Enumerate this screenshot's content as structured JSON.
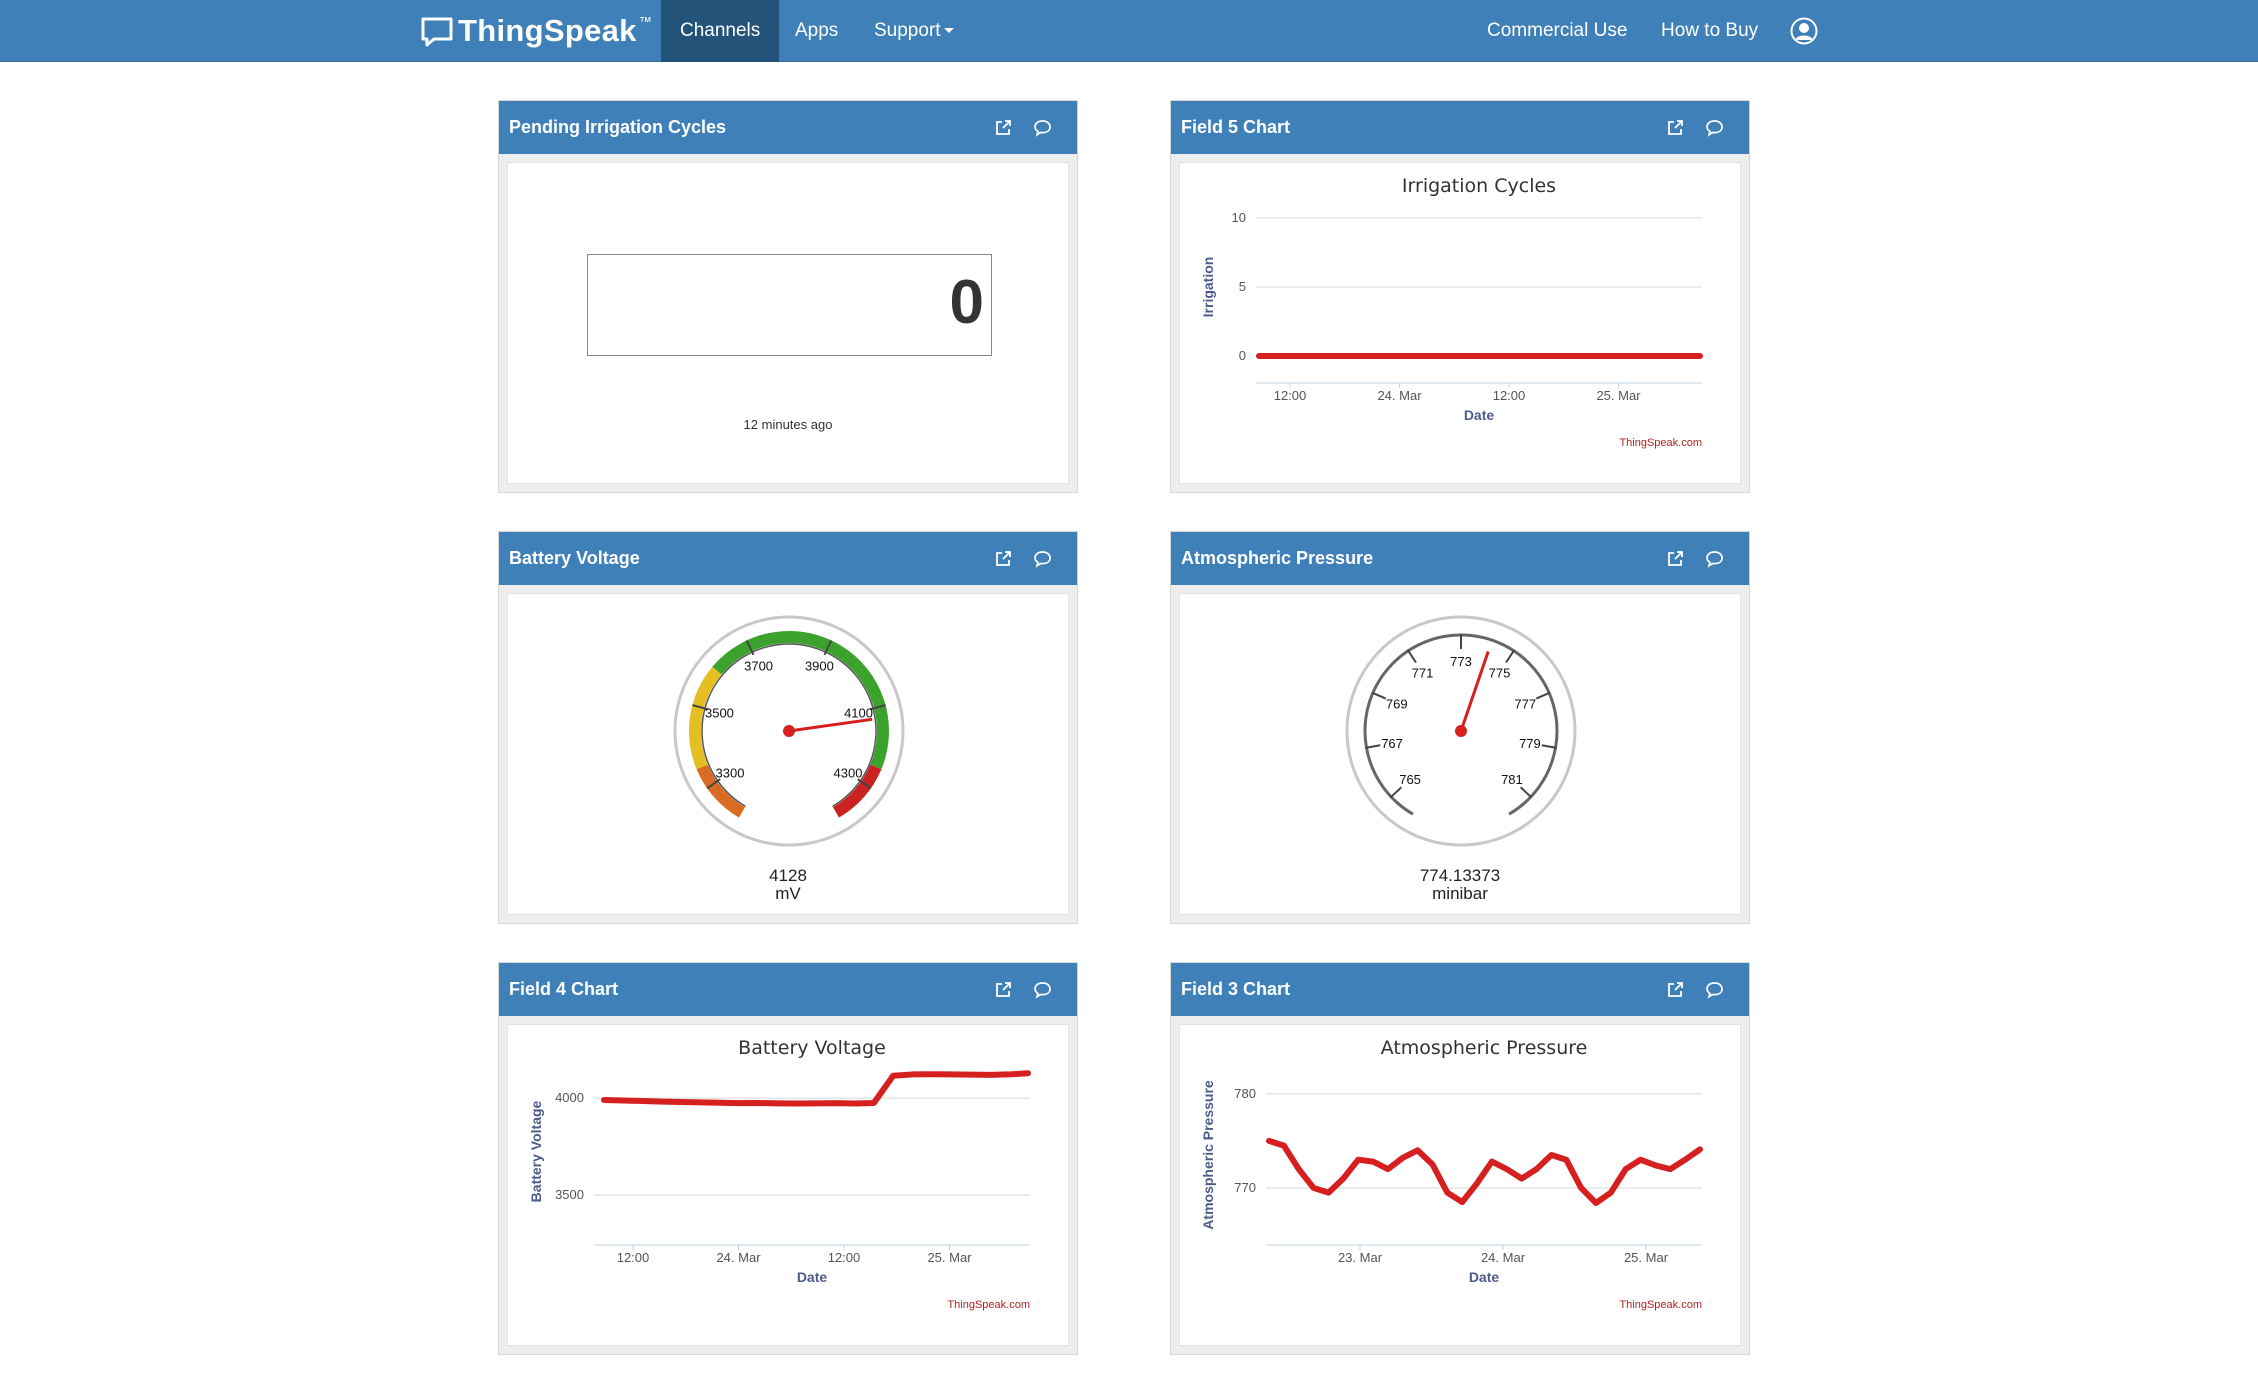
{
  "navbar": {
    "brand": "ThingSpeak",
    "brand_tm": "™",
    "items": [
      {
        "label": "Channels",
        "active": true
      },
      {
        "label": "Apps"
      },
      {
        "label": "Support"
      },
      {
        "label": "Commercial Use"
      },
      {
        "label": "How to Buy"
      }
    ],
    "user_icon": "user-avatar-icon"
  },
  "widgets": {
    "pending": {
      "title": "Pending Irrigation Cycles",
      "value": "0",
      "updated": "12 minutes ago"
    },
    "field5": {
      "title": "Field 5 Chart"
    },
    "battery": {
      "title": "Battery Voltage",
      "value": "4128",
      "units": "mV"
    },
    "pressure": {
      "title": "Atmospheric Pressure",
      "value": "774.13373",
      "units": "minibar"
    },
    "field4": {
      "title": "Field 4 Chart"
    },
    "field3": {
      "title": "Field 3 Chart"
    }
  },
  "colors": {
    "header_blue": "#3f80b9",
    "active_nav": "#235379",
    "series_red": "#d62020",
    "axis_title_blue": "#4d5b8c",
    "gauge_green": "#3ba22b",
    "gauge_yellow": "#e5be22",
    "gauge_orange": "#d96b22",
    "gauge_red": "#cc2121"
  },
  "chart_data": [
    {
      "id": "field5",
      "type": "line",
      "title": "Irrigation Cycles",
      "xlabel": "Date",
      "ylabel": "Irrigation",
      "x_ticks": [
        "12:00",
        "24. Mar",
        "12:00",
        "25. Mar"
      ],
      "y_ticks": [
        0,
        5,
        10
      ],
      "ylim": [
        0,
        10
      ],
      "credit": "ThingSpeak.com",
      "series": [
        {
          "values": [
            0,
            0,
            0,
            0,
            0,
            0,
            0,
            0,
            0,
            0
          ]
        }
      ]
    },
    {
      "id": "field4",
      "type": "line",
      "title": "Battery Voltage",
      "xlabel": "Date",
      "ylabel": "Battery Voltage",
      "x_ticks": [
        "12:00",
        "24. Mar",
        "12:00",
        "25. Mar"
      ],
      "y_ticks": [
        3500,
        4000
      ],
      "ylim": [
        3300,
        4150
      ],
      "credit": "ThingSpeak.com",
      "series": [
        {
          "values": [
            3990,
            3988,
            3985,
            3982,
            3980,
            3978,
            3976,
            3974,
            3975,
            3973,
            3972,
            3973,
            3974,
            3972,
            3975,
            4115,
            4122,
            4123,
            4122,
            4121,
            4120,
            4122,
            4128
          ]
        }
      ]
    },
    {
      "id": "field3",
      "type": "line",
      "title": "Atmospheric Pressure",
      "xlabel": "Date",
      "ylabel": "Atmospheric Pressure",
      "x_ticks": [
        "23. Mar",
        "24. Mar",
        "25. Mar"
      ],
      "y_ticks": [
        770,
        780
      ],
      "ylim": [
        765,
        782
      ],
      "credit": "ThingSpeak.com",
      "series": [
        {
          "values": [
            775,
            774.5,
            772,
            770,
            769.5,
            771,
            773,
            772.8,
            772,
            773.2,
            774,
            772.5,
            769.5,
            768.5,
            770.5,
            772.8,
            772,
            771,
            772,
            773.5,
            773,
            770,
            768.4,
            769.5,
            772,
            773,
            772.4,
            772,
            773,
            774.1
          ]
        }
      ]
    },
    {
      "id": "battery_gauge",
      "type": "gauge",
      "min": 3200,
      "max": 4400,
      "value": 4128,
      "ticks": [
        "3300",
        "3500",
        "3700",
        "3900",
        "4100",
        "4300"
      ],
      "bands": [
        {
          "from": 3200,
          "to": 3350,
          "color": "#d96b22"
        },
        {
          "from": 3350,
          "to": 3600,
          "color": "#e5be22"
        },
        {
          "from": 3600,
          "to": 4250,
          "color": "#3ba22b"
        },
        {
          "from": 4250,
          "to": 4400,
          "color": "#cc2121"
        }
      ]
    },
    {
      "id": "pressure_gauge",
      "type": "gauge",
      "min": 764,
      "max": 782,
      "value": 774.13373,
      "ticks": [
        "765",
        "767",
        "769",
        "771",
        "773",
        "775",
        "777",
        "779",
        "781"
      ]
    }
  ]
}
